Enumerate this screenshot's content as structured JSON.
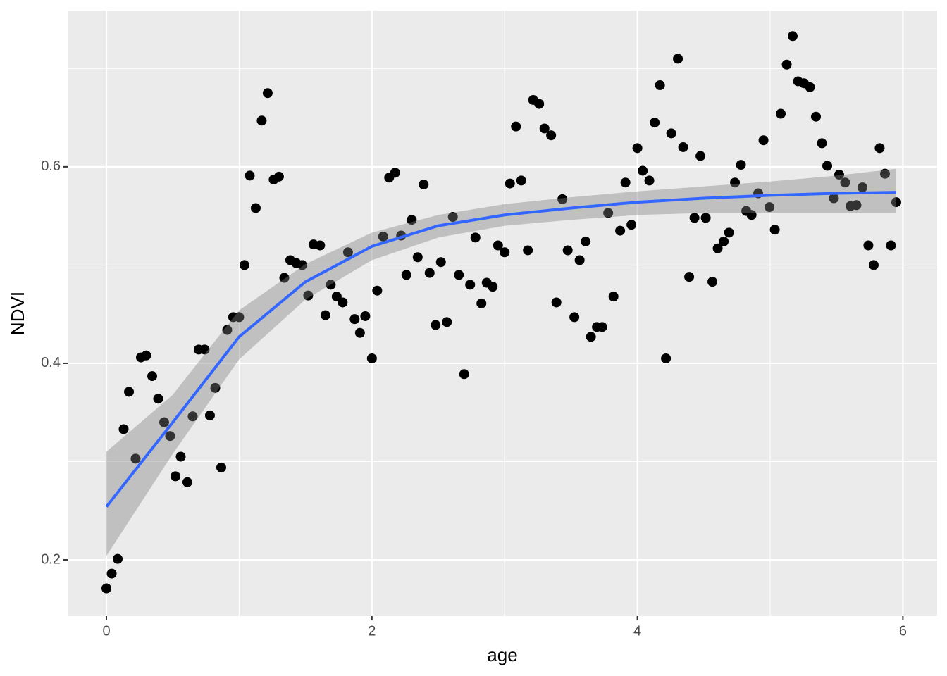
{
  "chart_data": {
    "type": "scatter",
    "x_label": "age",
    "y_label": "NDVI",
    "xlim": [
      -0.292,
      6.258
    ],
    "ylim": [
      0.1427,
      0.759
    ],
    "xticks": [
      0,
      2,
      4,
      6
    ],
    "yticks": [
      0.2,
      0.4,
      0.6
    ],
    "x_minor_ticks": [
      1,
      3,
      5
    ],
    "y_minor_ticks": [
      0.3,
      0.5,
      0.7
    ],
    "grid": true,
    "background": "#ebebeb",
    "series": [
      {
        "type": "scatter",
        "color": "#000000",
        "x": [
          0,
          0.04,
          0.085,
          0.13,
          0.17,
          0.22,
          0.26,
          0.3,
          0.345,
          0.39,
          0.435,
          0.48,
          0.52,
          0.56,
          0.61,
          0.65,
          0.695,
          0.74,
          0.78,
          0.82,
          0.865,
          0.91,
          0.955,
          1.0,
          1.04,
          1.08,
          1.125,
          1.17,
          1.215,
          1.26,
          1.3,
          1.34,
          1.385,
          1.43,
          1.475,
          1.52,
          1.56,
          1.61,
          1.65,
          1.69,
          1.735,
          1.78,
          1.82,
          1.87,
          1.91,
          1.95,
          2.0,
          2.04,
          2.085,
          2.13,
          2.175,
          2.22,
          2.26,
          2.3,
          2.345,
          2.39,
          2.435,
          2.48,
          2.52,
          2.565,
          2.61,
          2.655,
          2.695,
          2.74,
          2.78,
          2.825,
          2.865,
          2.91,
          2.95,
          3.0,
          3.04,
          3.085,
          3.125,
          3.175,
          3.215,
          3.26,
          3.3,
          3.35,
          3.39,
          3.435,
          3.475,
          3.525,
          3.565,
          3.61,
          3.65,
          3.695,
          3.735,
          3.78,
          3.82,
          3.87,
          3.91,
          3.955,
          4.0,
          4.04,
          4.09,
          4.13,
          4.17,
          4.215,
          4.255,
          4.305,
          4.345,
          4.39,
          4.43,
          4.475,
          4.515,
          4.565,
          4.605,
          4.65,
          4.69,
          4.735,
          4.78,
          4.82,
          4.86,
          4.91,
          4.95,
          4.995,
          5.035,
          5.08,
          5.125,
          5.17,
          5.21,
          5.255,
          5.3,
          5.345,
          5.39,
          5.43,
          5.48,
          5.52,
          5.565,
          5.605,
          5.65,
          5.695,
          5.74,
          5.78,
          5.825,
          5.865,
          5.91,
          5.95
        ],
        "values": [
          0.171,
          0.186,
          0.201,
          0.333,
          0.371,
          0.303,
          0.406,
          0.408,
          0.387,
          0.364,
          0.34,
          0.326,
          0.285,
          0.305,
          0.279,
          0.346,
          0.414,
          0.414,
          0.347,
          0.375,
          0.294,
          0.434,
          0.447,
          0.447,
          0.5,
          0.591,
          0.558,
          0.647,
          0.675,
          0.587,
          0.59,
          0.487,
          0.505,
          0.502,
          0.5,
          0.469,
          0.521,
          0.52,
          0.449,
          0.48,
          0.468,
          0.462,
          0.513,
          0.445,
          0.431,
          0.448,
          0.405,
          0.474,
          0.529,
          0.589,
          0.594,
          0.53,
          0.49,
          0.546,
          0.508,
          0.582,
          0.492,
          0.439,
          0.503,
          0.442,
          0.549,
          0.49,
          0.389,
          0.48,
          0.528,
          0.461,
          0.482,
          0.478,
          0.52,
          0.513,
          0.583,
          0.641,
          0.586,
          0.515,
          0.668,
          0.664,
          0.639,
          0.632,
          0.462,
          0.567,
          0.515,
          0.447,
          0.505,
          0.524,
          0.427,
          0.437,
          0.437,
          0.553,
          0.468,
          0.535,
          0.584,
          0.541,
          0.619,
          0.596,
          0.586,
          0.645,
          0.683,
          0.405,
          0.634,
          0.71,
          0.62,
          0.488,
          0.548,
          0.611,
          0.548,
          0.483,
          0.517,
          0.524,
          0.533,
          0.584,
          0.602,
          0.555,
          0.551,
          0.573,
          0.627,
          0.559,
          0.536,
          0.654,
          0.704,
          0.733,
          0.687,
          0.685,
          0.681,
          0.651,
          0.624,
          0.601,
          0.568,
          0.592,
          0.584,
          0.56,
          0.561,
          0.579,
          0.52,
          0.5,
          0.619,
          0.593,
          0.52,
          0.564
        ]
      },
      {
        "type": "line",
        "color": "#3366ff",
        "band_color": "#808080",
        "x": [
          0,
          0.5,
          1,
          1.5,
          2,
          2.5,
          3,
          3.5,
          4,
          4.5,
          5,
          5.5,
          5.95
        ],
        "values": [
          0.254,
          0.34,
          0.427,
          0.483,
          0.519,
          0.54,
          0.551,
          0.558,
          0.564,
          0.568,
          0.571,
          0.573,
          0.574
        ],
        "upper": [
          0.31,
          0.368,
          0.454,
          0.501,
          0.533,
          0.551,
          0.562,
          0.569,
          0.575,
          0.58,
          0.585,
          0.591,
          0.598
        ],
        "lower": [
          0.204,
          0.308,
          0.404,
          0.465,
          0.505,
          0.528,
          0.54,
          0.546,
          0.551,
          0.553,
          0.553,
          0.553,
          0.553
        ]
      }
    ]
  }
}
